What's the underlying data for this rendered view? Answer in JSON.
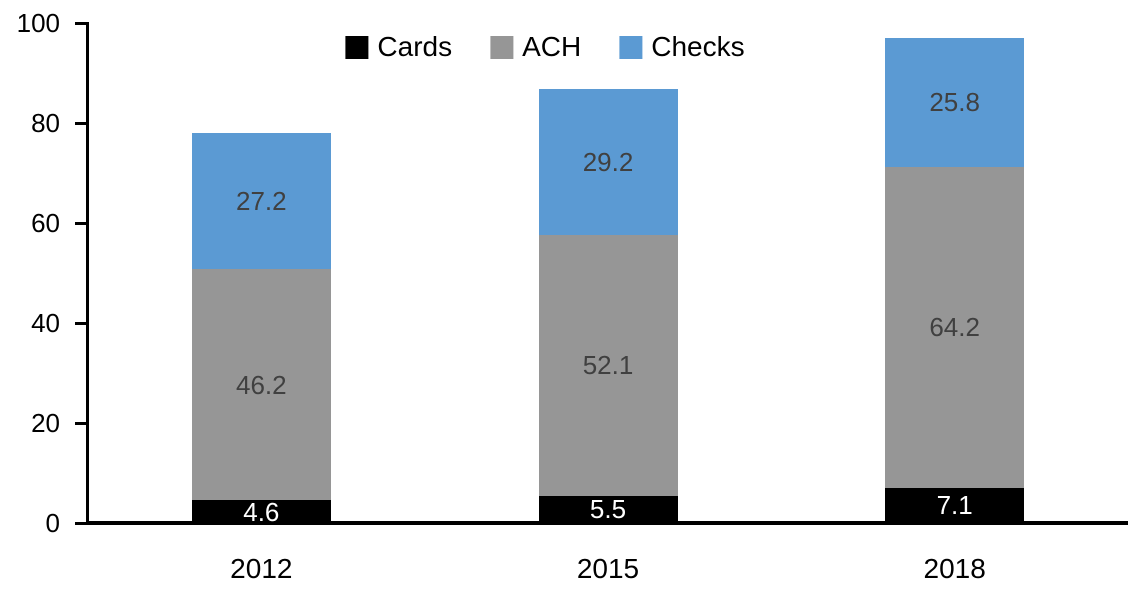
{
  "chart_data": {
    "type": "bar",
    "stacked": true,
    "title": "",
    "xlabel": "",
    "ylabel": "",
    "categories": [
      "2012",
      "2015",
      "2018"
    ],
    "series": [
      {
        "name": "Cards",
        "color": "#000000",
        "label_color": "#ffffff",
        "values": [
          4.6,
          5.5,
          7.1
        ]
      },
      {
        "name": "ACH",
        "color": "#969696",
        "label_color": "#404040",
        "values": [
          46.2,
          52.1,
          64.2
        ]
      },
      {
        "name": "Checks",
        "color": "#5B9AD3",
        "label_color": "#404040",
        "values": [
          27.2,
          29.2,
          25.8
        ]
      }
    ],
    "totals": [
      78.0,
      86.8,
      97.1
    ],
    "ylim": [
      0,
      100
    ],
    "yticks": [
      "0",
      "20",
      "40",
      "60",
      "80",
      "100"
    ],
    "grid": false,
    "legend_position": "top-center",
    "axis_color": "#000000"
  }
}
